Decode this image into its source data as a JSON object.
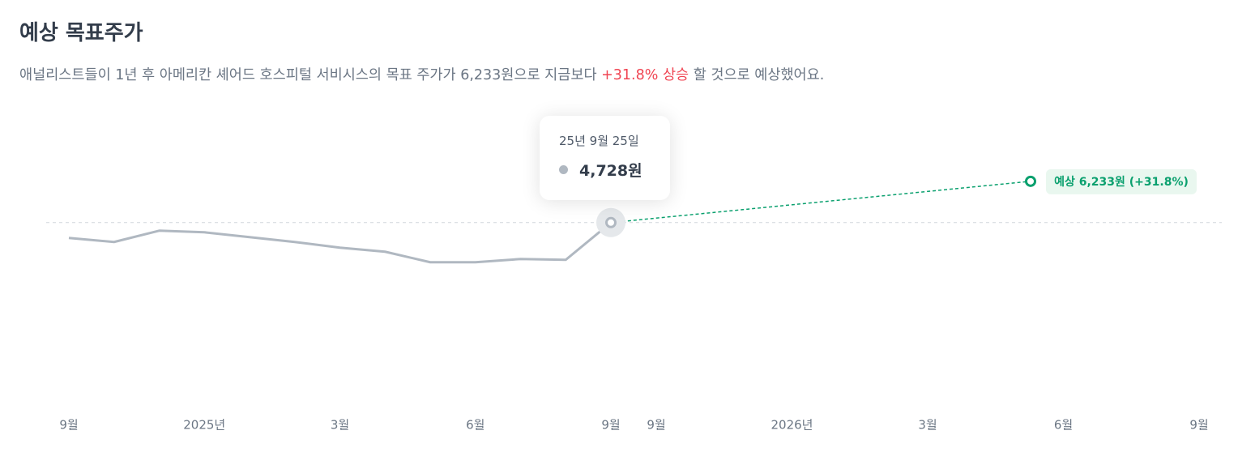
{
  "chart_data": {
    "type": "line",
    "title": "예상 목표주가",
    "subtitle": {
      "before": "애널리스트들이 1년 후 아메리칸 셰어드 호스피털 서비시스의 목표 주가가 6,233원으로 지금보다 ",
      "highlight": "+31.8% 상승",
      "after": " 할 것으로 예상했어요."
    },
    "categories": [
      "9월",
      null,
      null,
      "2025년",
      null,
      null,
      "3월",
      null,
      null,
      "6월",
      null,
      null,
      "9월"
    ],
    "values": [
      4168,
      4020,
      4433,
      4374,
      4197,
      4020,
      3814,
      3666,
      3282,
      3282,
      3400,
      3371,
      4728
    ],
    "color": "#b0b8c1",
    "ylim": [
      1000,
      8000
    ],
    "forecast_categories": [
      "9월",
      "2026년",
      "3월",
      "6월",
      "9월"
    ],
    "target": {
      "value": 6233,
      "label": "예상 6,233원 (+31.8%)",
      "color": "#0aa06e"
    },
    "tooltip": {
      "date": "25년 9월 25일",
      "value_label": "4,728원"
    }
  }
}
